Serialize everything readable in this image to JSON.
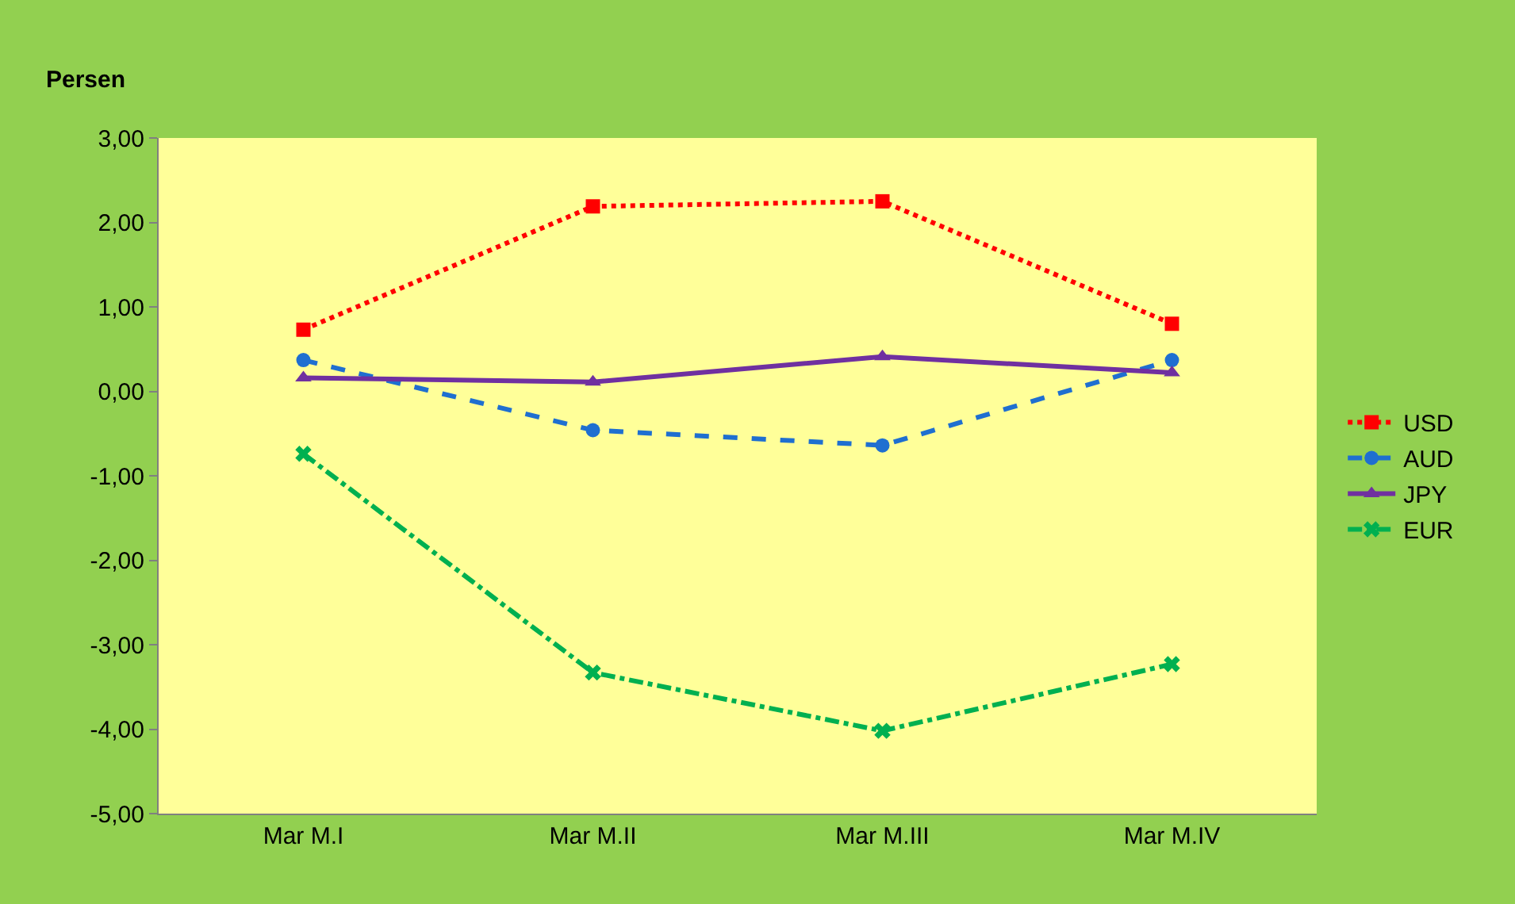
{
  "chart_data": {
    "type": "line",
    "ylabel": "Persen",
    "categories": [
      "Mar M.I",
      "Mar M.II",
      "Mar M.III",
      "Mar M.IV"
    ],
    "series": [
      {
        "name": "USD",
        "color": "#ff0000",
        "values": [
          0.73,
          2.19,
          2.25,
          0.8
        ],
        "marker": "square",
        "line_style": "dotted"
      },
      {
        "name": "AUD",
        "color": "#1f6fd0",
        "values": [
          0.37,
          -0.46,
          -0.64,
          0.37
        ],
        "marker": "circle",
        "line_style": "dashed"
      },
      {
        "name": "JPY",
        "color": "#7030a0",
        "values": [
          0.16,
          0.11,
          0.41,
          0.22
        ],
        "marker": "triangle",
        "line_style": "solid"
      },
      {
        "name": "EUR",
        "color": "#00b050",
        "values": [
          -0.74,
          -3.33,
          -4.02,
          -3.23
        ],
        "marker": "cross",
        "line_style": "dashdot"
      }
    ],
    "ylim": [
      -5,
      3
    ],
    "yticks": [
      {
        "value": 3,
        "label": "3,00"
      },
      {
        "value": 2,
        "label": "2,00"
      },
      {
        "value": 1,
        "label": "1,00"
      },
      {
        "value": 0,
        "label": "0,00"
      },
      {
        "value": -1,
        "label": "-1,00"
      },
      {
        "value": -2,
        "label": "-2,00"
      },
      {
        "value": -3,
        "label": "-3,00"
      },
      {
        "value": -4,
        "label": "-4,00"
      },
      {
        "value": -5,
        "label": "-5,00"
      }
    ],
    "grid": false,
    "legend": "right"
  }
}
